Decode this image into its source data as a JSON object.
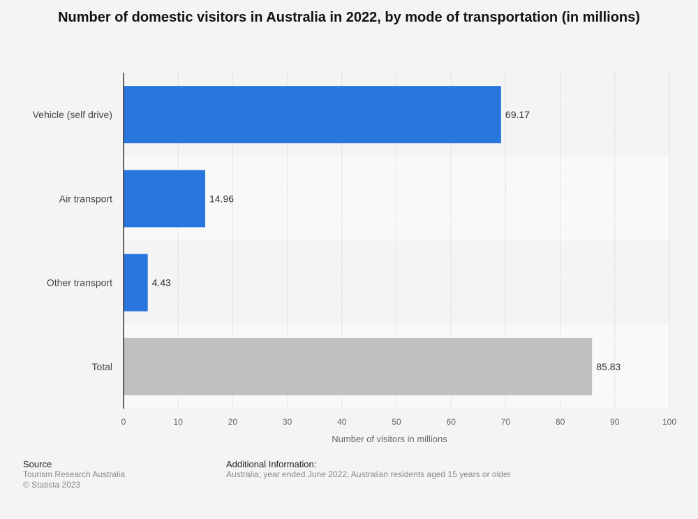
{
  "chart_data": {
    "type": "bar",
    "orientation": "horizontal",
    "title": "Number of domestic visitors in Australia in 2022, by mode of transportation (in millions)",
    "categories": [
      "Vehicle (self drive)",
      "Air transport",
      "Other transport",
      "Total"
    ],
    "values": [
      69.17,
      14.96,
      4.43,
      85.83
    ],
    "value_labels": [
      "69.17",
      "14.96",
      "4.43",
      "85.83"
    ],
    "bar_colors": [
      "#2876dd",
      "#2876dd",
      "#2876dd",
      "#c0c0c0"
    ],
    "xlabel": "Number of visitors in millions",
    "ylabel": "",
    "xlim": [
      0,
      100
    ],
    "x_ticks": [
      0,
      10,
      20,
      30,
      40,
      50,
      60,
      70,
      80,
      90,
      100
    ],
    "grid": true
  },
  "footer": {
    "source_heading": "Source",
    "source_text": "Tourism Research Australia",
    "copyright": "© Statista 2023",
    "info_heading": "Additional Information:",
    "info_text": "Australia; year ended June 2022; Australian residents aged 15 years or older"
  },
  "colors": {
    "background": "#f4f4f4",
    "band": "#f9f9f9",
    "bar": "#2876dd",
    "total_bar": "#c0c0c0"
  }
}
